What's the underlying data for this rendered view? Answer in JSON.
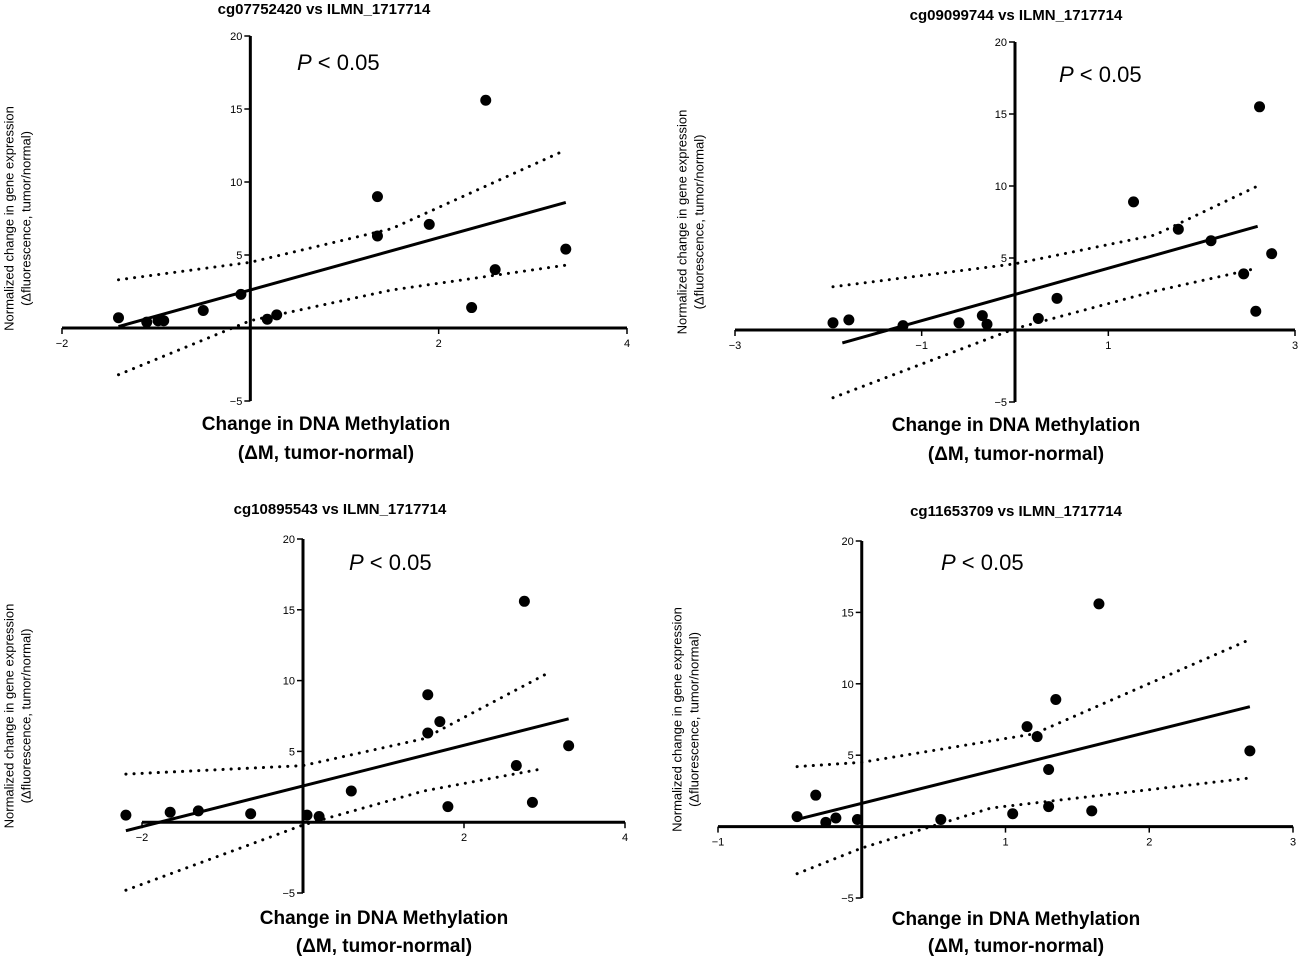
{
  "chart_data": [
    {
      "type": "scatter",
      "title": "cg07752420 vs ILMN_1717714",
      "xlabel": "Change in DNA Methylation",
      "xlabel_sub": "(ΔM, tumor-normal)",
      "ylabel": "Normalized change in gene expression",
      "ylabel_sub": "(Δfluorescence, tumor/normal)",
      "annotation": {
        "p_symbol": "P",
        "p_rest": " < 0.05"
      },
      "xlim": [
        -2,
        4
      ],
      "ylim": [
        -5,
        20
      ],
      "x_ticks": [
        "−2",
        "2",
        "4"
      ],
      "y_ticks": [
        "20",
        "15",
        "10",
        "5",
        "−5"
      ],
      "points": [
        [
          -1.4,
          0.7
        ],
        [
          -1.1,
          0.4
        ],
        [
          -0.98,
          0.5
        ],
        [
          -0.92,
          0.5
        ],
        [
          -0.5,
          1.2
        ],
        [
          -0.1,
          2.3
        ],
        [
          0.18,
          0.6
        ],
        [
          0.28,
          0.9
        ],
        [
          1.35,
          9.0
        ],
        [
          1.35,
          6.3
        ],
        [
          1.9,
          7.1
        ],
        [
          2.35,
          1.4
        ],
        [
          2.5,
          15.6
        ],
        [
          2.6,
          4.0
        ],
        [
          3.35,
          5.4
        ]
      ],
      "fit": [
        [
          -1.4,
          0.1
        ],
        [
          3.35,
          8.6
        ]
      ],
      "ci_upper": [
        [
          -1.4,
          3.3
        ],
        [
          0,
          4.5
        ],
        [
          1.5,
          6.8
        ],
        [
          3.35,
          12.2
        ]
      ],
      "ci_lower": [
        [
          -1.4,
          -3.2
        ],
        [
          0,
          0.5
        ],
        [
          1.5,
          2.6
        ],
        [
          3.35,
          4.3
        ]
      ]
    },
    {
      "type": "scatter",
      "title": "cg09099744 vs ILMN_1717714",
      "xlabel": "Change in DNA Methylation",
      "xlabel_sub": "(ΔM, tumor-normal)",
      "ylabel": "Normalized change in gene expression",
      "ylabel_sub": "(Δfluorescence, tumor/normal)",
      "annotation": {
        "p_symbol": "P",
        "p_rest": " < 0.05"
      },
      "xlim": [
        -3,
        3
      ],
      "ylim": [
        -5,
        20
      ],
      "x_ticks": [
        "−3",
        "−1",
        "1",
        "3"
      ],
      "y_ticks": [
        "20",
        "15",
        "10",
        "5",
        "−5"
      ],
      "points": [
        [
          -1.95,
          0.5
        ],
        [
          -1.78,
          0.7
        ],
        [
          -1.2,
          0.3
        ],
        [
          -0.6,
          0.5
        ],
        [
          -0.35,
          1.0
        ],
        [
          -0.3,
          0.4
        ],
        [
          0.25,
          0.8
        ],
        [
          0.45,
          2.2
        ],
        [
          1.27,
          8.9
        ],
        [
          1.75,
          7.0
        ],
        [
          2.1,
          6.2
        ],
        [
          2.45,
          3.9
        ],
        [
          2.58,
          1.3
        ],
        [
          2.62,
          15.5
        ],
        [
          2.75,
          5.3
        ]
      ],
      "fit": [
        [
          -1.85,
          -0.9
        ],
        [
          2.6,
          7.2
        ]
      ],
      "ci_upper": [
        [
          -1.95,
          3.0
        ],
        [
          0,
          4.6
        ],
        [
          1.5,
          6.6
        ],
        [
          2.6,
          10.0
        ]
      ],
      "ci_lower": [
        [
          -1.95,
          -4.7
        ],
        [
          0,
          0.1
        ],
        [
          1.5,
          2.7
        ],
        [
          2.6,
          4.3
        ]
      ]
    },
    {
      "type": "scatter",
      "title": "cg10895543 vs ILMN_1717714",
      "xlabel": "Change in DNA Methylation",
      "xlabel_sub": "(ΔM, tumor-normal)",
      "ylabel": "Normalized change in gene expression",
      "ylabel_sub": "(Δfluorescence, tumor/normal)",
      "annotation": {
        "p_symbol": "P",
        "p_rest": " < 0.05"
      },
      "xlim": [
        -2,
        4
      ],
      "ylim": [
        -5,
        20
      ],
      "x_ticks": [
        "−2",
        "2",
        "4"
      ],
      "y_ticks": [
        "20",
        "15",
        "10",
        "5",
        "−5"
      ],
      "points": [
        [
          -2.2,
          0.5
        ],
        [
          -1.65,
          0.7
        ],
        [
          -1.3,
          0.8
        ],
        [
          -0.65,
          0.6
        ],
        [
          0.05,
          0.5
        ],
        [
          0.2,
          0.4
        ],
        [
          0.6,
          2.2
        ],
        [
          1.55,
          9.0
        ],
        [
          1.55,
          6.3
        ],
        [
          1.7,
          7.1
        ],
        [
          1.8,
          1.1
        ],
        [
          2.65,
          4.0
        ],
        [
          2.75,
          15.6
        ],
        [
          2.85,
          1.4
        ],
        [
          3.3,
          5.4
        ]
      ],
      "fit": [
        [
          -2.2,
          -0.6
        ],
        [
          3.3,
          7.3
        ]
      ],
      "ci_upper": [
        [
          -2.2,
          3.4
        ],
        [
          0,
          4.0
        ],
        [
          1.5,
          5.9
        ],
        [
          3.0,
          10.4
        ]
      ],
      "ci_lower": [
        [
          -2.2,
          -4.8
        ],
        [
          0,
          -0.2
        ],
        [
          1.5,
          2.2
        ],
        [
          3.0,
          3.8
        ]
      ]
    },
    {
      "type": "scatter",
      "title": "cg11653709 vs ILMN_1717714",
      "xlabel": "Change in DNA Methylation",
      "xlabel_sub": "(ΔM, tumor-normal)",
      "ylabel": "Normalized change in gene expression",
      "ylabel_sub": "(Δfluorescence, tumor/normal)",
      "annotation": {
        "p_symbol": "P",
        "p_rest": " < 0.05"
      },
      "xlim": [
        -1,
        3
      ],
      "ylim": [
        -5,
        20
      ],
      "x_ticks": [
        "−1",
        "1",
        "2",
        "3"
      ],
      "y_ticks": [
        "20",
        "15",
        "10",
        "5",
        "−5"
      ],
      "points": [
        [
          -0.45,
          0.7
        ],
        [
          -0.32,
          2.2
        ],
        [
          -0.25,
          0.3
        ],
        [
          -0.18,
          0.6
        ],
        [
          -0.03,
          0.5
        ],
        [
          0.55,
          0.5
        ],
        [
          1.05,
          0.9
        ],
        [
          1.15,
          7.0
        ],
        [
          1.22,
          6.3
        ],
        [
          1.3,
          4.0
        ],
        [
          1.3,
          1.4
        ],
        [
          1.35,
          8.9
        ],
        [
          1.6,
          1.1
        ],
        [
          1.65,
          15.6
        ],
        [
          2.7,
          5.3
        ]
      ],
      "fit": [
        [
          -0.45,
          0.5
        ],
        [
          2.7,
          8.4
        ]
      ],
      "ci_upper": [
        [
          -0.45,
          4.2
        ],
        [
          0,
          4.5
        ],
        [
          1.2,
          6.5
        ],
        [
          2.7,
          13.1
        ]
      ],
      "ci_lower": [
        [
          -0.45,
          -3.3
        ],
        [
          0,
          -1.5
        ],
        [
          0.9,
          1.3
        ],
        [
          2.7,
          3.4
        ]
      ]
    }
  ]
}
